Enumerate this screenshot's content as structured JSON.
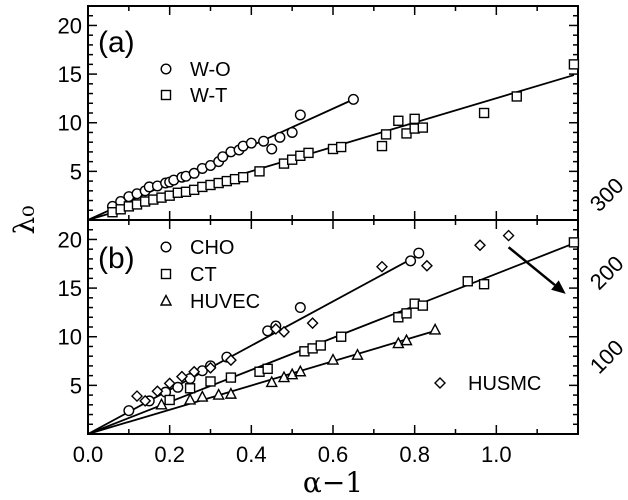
{
  "chart_data": [
    {
      "panel_label": "(a)",
      "type": "scatter",
      "xlim": [
        0,
        1.2
      ],
      "ylim": [
        0,
        22
      ],
      "x_ticks": [
        "0.0",
        "0.2",
        "0.4",
        "0.6",
        "0.8",
        "1.0"
      ],
      "y_ticks": [
        "5",
        "10",
        "15",
        "20"
      ],
      "series": [
        {
          "name": "W-O",
          "marker": "circle",
          "points": [
            [
              0.06,
              1.4
            ],
            [
              0.08,
              1.9
            ],
            [
              0.1,
              2.4
            ],
            [
              0.12,
              2.7
            ],
            [
              0.14,
              3.0
            ],
            [
              0.15,
              3.4
            ],
            [
              0.17,
              3.5
            ],
            [
              0.19,
              3.8
            ],
            [
              0.2,
              3.9
            ],
            [
              0.21,
              4.1
            ],
            [
              0.23,
              4.4
            ],
            [
              0.24,
              4.5
            ],
            [
              0.26,
              4.8
            ],
            [
              0.28,
              5.3
            ],
            [
              0.3,
              5.6
            ],
            [
              0.32,
              6.0
            ],
            [
              0.33,
              6.5
            ],
            [
              0.35,
              7.0
            ],
            [
              0.37,
              7.2
            ],
            [
              0.38,
              7.6
            ],
            [
              0.4,
              7.9
            ],
            [
              0.43,
              8.1
            ],
            [
              0.45,
              7.3
            ],
            [
              0.47,
              8.5
            ],
            [
              0.5,
              9.0
            ],
            [
              0.52,
              10.8
            ],
            [
              0.65,
              12.4
            ]
          ],
          "fit": [
            [
              0,
              0
            ],
            [
              0.65,
              12.4
            ]
          ]
        },
        {
          "name": "W-T",
          "marker": "square",
          "points": [
            [
              0.06,
              0.8
            ],
            [
              0.08,
              1.1
            ],
            [
              0.1,
              1.4
            ],
            [
              0.12,
              1.6
            ],
            [
              0.14,
              1.9
            ],
            [
              0.16,
              2.1
            ],
            [
              0.18,
              2.3
            ],
            [
              0.2,
              2.5
            ],
            [
              0.22,
              2.8
            ],
            [
              0.24,
              2.9
            ],
            [
              0.26,
              3.1
            ],
            [
              0.28,
              3.4
            ],
            [
              0.3,
              3.6
            ],
            [
              0.32,
              3.8
            ],
            [
              0.34,
              4.0
            ],
            [
              0.36,
              4.2
            ],
            [
              0.38,
              4.4
            ],
            [
              0.42,
              5.0
            ],
            [
              0.48,
              5.8
            ],
            [
              0.5,
              6.2
            ],
            [
              0.52,
              6.6
            ],
            [
              0.54,
              6.9
            ],
            [
              0.6,
              7.3
            ],
            [
              0.62,
              7.5
            ],
            [
              0.72,
              7.6
            ],
            [
              0.73,
              8.8
            ],
            [
              0.76,
              10.2
            ],
            [
              0.78,
              8.9
            ],
            [
              0.8,
              9.4
            ],
            [
              0.8,
              10.4
            ],
            [
              0.82,
              9.5
            ],
            [
              0.97,
              11.0
            ],
            [
              1.05,
              12.7
            ],
            [
              1.19,
              16.0
            ]
          ],
          "fit": [
            [
              0,
              0
            ],
            [
              1.19,
              14.9
            ]
          ]
        }
      ]
    },
    {
      "panel_label": "(b)",
      "type": "scatter",
      "xlim": [
        0,
        1.2
      ],
      "ylim": [
        0,
        22
      ],
      "xlabel": "α−1",
      "shared_ylabel": "λ₀",
      "x_ticks": [
        "0.0",
        "0.2",
        "0.4",
        "0.6",
        "0.8",
        "1.0"
      ],
      "y_ticks": [
        "5",
        "10",
        "15",
        "20"
      ],
      "right_axis_ticks": [
        "100",
        "200",
        "300"
      ],
      "series": [
        {
          "name": "CHO",
          "marker": "circle",
          "points": [
            [
              0.1,
              2.4
            ],
            [
              0.15,
              3.4
            ],
            [
              0.19,
              4.3
            ],
            [
              0.22,
              4.8
            ],
            [
              0.25,
              5.7
            ],
            [
              0.28,
              6.5
            ],
            [
              0.3,
              7.0
            ],
            [
              0.34,
              7.9
            ],
            [
              0.44,
              10.6
            ],
            [
              0.46,
              11.1
            ],
            [
              0.52,
              13.0
            ],
            [
              0.79,
              17.8
            ],
            [
              0.81,
              18.6
            ]
          ],
          "fit": [
            [
              0,
              0
            ],
            [
              0.81,
              18.4
            ]
          ]
        },
        {
          "name": "CT",
          "marker": "square",
          "points": [
            [
              0.2,
              3.5
            ],
            [
              0.25,
              4.7
            ],
            [
              0.3,
              5.4
            ],
            [
              0.35,
              5.8
            ],
            [
              0.42,
              6.4
            ],
            [
              0.44,
              6.7
            ],
            [
              0.53,
              8.5
            ],
            [
              0.55,
              8.8
            ],
            [
              0.57,
              9.1
            ],
            [
              0.62,
              10.0
            ],
            [
              0.76,
              12.0
            ],
            [
              0.78,
              12.4
            ],
            [
              0.8,
              13.4
            ],
            [
              0.82,
              13.2
            ],
            [
              0.93,
              15.7
            ],
            [
              0.97,
              15.4
            ],
            [
              1.19,
              19.7
            ]
          ],
          "fit": [
            [
              0,
              0
            ],
            [
              1.19,
              19.6
            ]
          ]
        },
        {
          "name": "HUVEC",
          "marker": "triangle",
          "points": [
            [
              0.18,
              3.0
            ],
            [
              0.25,
              3.5
            ],
            [
              0.28,
              3.8
            ],
            [
              0.32,
              4.0
            ],
            [
              0.35,
              4.1
            ],
            [
              0.45,
              5.3
            ],
            [
              0.48,
              5.8
            ],
            [
              0.5,
              6.1
            ],
            [
              0.52,
              6.4
            ],
            [
              0.6,
              7.6
            ],
            [
              0.66,
              8.1
            ],
            [
              0.76,
              9.3
            ],
            [
              0.78,
              9.6
            ],
            [
              0.85,
              10.7
            ]
          ],
          "fit": [
            [
              0,
              0
            ],
            [
              0.85,
              10.6
            ]
          ]
        },
        {
          "name": "HUSMC",
          "marker": "diamond",
          "points": [
            [
              0.12,
              3.9
            ],
            [
              0.14,
              3.4
            ],
            [
              0.17,
              4.4
            ],
            [
              0.2,
              5.2
            ],
            [
              0.23,
              5.9
            ],
            [
              0.26,
              6.4
            ],
            [
              0.3,
              6.8
            ],
            [
              0.35,
              7.6
            ],
            [
              0.46,
              10.8
            ],
            [
              0.48,
              10.5
            ],
            [
              0.55,
              11.4
            ],
            [
              0.72,
              17.2
            ],
            [
              0.83,
              17.3
            ],
            [
              0.96,
              19.4
            ],
            [
              1.03,
              20.4
            ]
          ],
          "fit": null
        }
      ],
      "arrow": {
        "from": [
          1.03,
          19.2
        ],
        "to": [
          1.17,
          14.4
        ]
      }
    }
  ]
}
